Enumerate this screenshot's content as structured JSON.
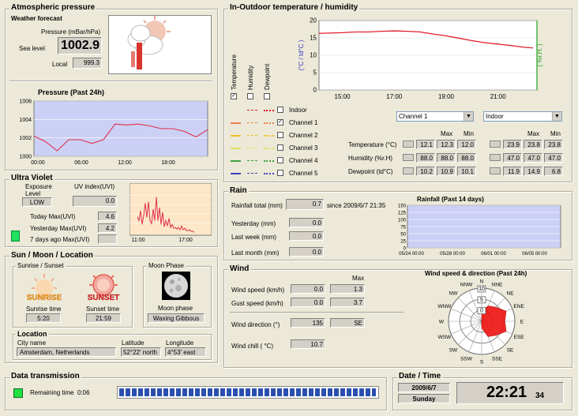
{
  "pressure": {
    "title": "Atmospheric pressure",
    "forecast_label": "Weather forecast",
    "units_label": "Pressure (mBar/hPa)",
    "sealevel_label": "Sea level",
    "sealevel_value": "1002.9",
    "local_label": "Local",
    "local_value": "999.3",
    "chart_title": "Pressure (Past 24h)"
  },
  "uv": {
    "title": "Ultra Violet",
    "exposure_label": "Exposure Level",
    "exposure_value": "LOW",
    "index_label": "UV index(UVI)",
    "index_value": "0.0",
    "today_label": "Today Max(UVI)",
    "today_value": "4.6",
    "yesterday_label": "Yesterday Max(UVI)",
    "yesterday_value": "4.2",
    "week_label": "7 days ago Max(UVI)",
    "week_value": ""
  },
  "sunmoon": {
    "title": "Sun / Moon / Location",
    "sun_group": "Sunrise / Sunset",
    "sunrise_img": "SUNRISE",
    "sunset_img": "SUNSET",
    "sunrise_label": "Sunrise time",
    "sunset_label": "Sunset time",
    "sunrise_value": "5:20",
    "sunset_value": "21:59",
    "moon_group": "Moon Phase",
    "moon_label": "Moon phase",
    "moon_value": "Waxing Gibbous",
    "location_group": "Location",
    "city_label": "City name",
    "city_value": "Amsterdam, Netherlands",
    "lat_label": "Latitude",
    "lat_value": "52°22' north",
    "lon_label": "Longitude",
    "lon_value": "4°53' east"
  },
  "temp": {
    "title": "In-Outdoor temperature / humidity",
    "col_temperature": "Temperature",
    "col_humidity": "Humidity",
    "col_dewpoint": "Dewpoint",
    "channels": [
      "Indoor",
      "Channel 1",
      "Channel 2",
      "Channel 3",
      "Channel 4",
      "Channel 5"
    ],
    "select_a": "Channel 1",
    "select_b": "Indoor",
    "max_label": "Max",
    "min_label": "Min",
    "rows": [
      {
        "label": "Temperature (°C)",
        "a": [
          "12.1",
          "12.3",
          "12.0"
        ],
        "b": [
          "23.9",
          "23.8",
          "23.8"
        ]
      },
      {
        "label": "Humidity (%r.H)",
        "a": [
          "88.0",
          "88.0",
          "88.0"
        ],
        "b": [
          "47.0",
          "47.0",
          "47.0"
        ]
      },
      {
        "label": "Dewpoint (td°C)",
        "a": [
          "10.2",
          "10.9",
          "10.1"
        ],
        "b": [
          "11.9",
          "14.9",
          "6.8"
        ]
      }
    ]
  },
  "rain": {
    "title": "Rain",
    "total_label": "Rainfall total (mm)",
    "total_value": "0.7",
    "since_label": "since 2009/6/7 21:35",
    "yesterday_label": "Yesterday (mm)",
    "yesterday_value": "0.0",
    "week_label": "Last week (mm)",
    "week_value": "0.0",
    "month_label": "Last month (mm)",
    "month_value": "0.0",
    "chart_title": "Rainfall (Past 14 days)"
  },
  "wind": {
    "title": "Wind",
    "max_label": "Max",
    "speed_label": "Wind speed (km/h)",
    "speed_value": "0.0",
    "speed_max": "1.3",
    "gust_label": "Gust speed (km/h)",
    "gust_value": "0.0",
    "gust_max": "3.7",
    "dir_label": "Wind direction (°)",
    "dir_value": "135",
    "dir_text": "SE",
    "chill_label": "Wind chill ( °C)",
    "chill_value": "10.7",
    "rose_title": "Wind speed & direction (Past 24h)"
  },
  "transmission": {
    "title": "Data transmission",
    "remaining_label": "Remaining time",
    "remaining_value": "0:06"
  },
  "datetime": {
    "title": "Date / Time",
    "date": "2009/6/7",
    "weekday": "Sunday",
    "time": "22:21",
    "seconds": "34"
  },
  "chart_data": [
    {
      "type": "line",
      "name": "pressure",
      "title": "Pressure (Past 24h)",
      "x": [
        "00:00",
        "01:30",
        "03:00",
        "04:30",
        "06:00",
        "07:30",
        "09:00",
        "10:30",
        "12:00",
        "13:30",
        "15:00",
        "16:30",
        "18:00",
        "19:30",
        "21:00",
        "22:30"
      ],
      "values": [
        1002.2,
        1001.6,
        1000.6,
        1001.8,
        1001.8,
        1001.4,
        1001.8,
        1003.5,
        1003.4,
        1003.5,
        1003.3,
        1003.0,
        1003.0,
        1002.7,
        1002.1,
        1002.9
      ],
      "xticks": [
        "00:00",
        "06:00",
        "12:00",
        "18:00"
      ],
      "yticks": [
        "1000",
        "1002",
        "1004",
        "1006"
      ],
      "ylim": [
        1000,
        1006
      ],
      "color": "#e0304a"
    },
    {
      "type": "line",
      "name": "uv",
      "x": [
        10.9,
        11.1,
        11.3,
        11.5,
        11.7,
        11.9,
        12.1,
        12.3,
        12.5,
        12.7,
        12.9,
        13.1,
        13.3,
        13.5,
        13.7,
        13.9,
        14.1,
        14.3,
        14.5,
        14.7,
        14.9,
        15.1,
        15.3,
        15.5,
        15.7,
        15.9,
        16.1,
        16.3,
        16.5,
        16.7,
        16.9,
        17.1,
        17.3,
        17.5,
        17.7,
        17.9,
        18.1
      ],
      "values": [
        2.0,
        1.5,
        2.8,
        1.0,
        2.2,
        3.8,
        1.9,
        4.0,
        1.5,
        1.1,
        3.0,
        1.5,
        4.6,
        1.5,
        3.2,
        1.0,
        2.6,
        0.7,
        1.5,
        0.8,
        1.8,
        0.6,
        1.0,
        0.5,
        0.6,
        0.4,
        0.6,
        0.3,
        0.8,
        0.3,
        0.5,
        0.2,
        0.2,
        0.3,
        0.1,
        0.1,
        0.0
      ],
      "xticks": [
        "11:00",
        "17:00"
      ],
      "ylim": [
        0,
        6
      ],
      "color": "#e0304a"
    },
    {
      "type": "line",
      "name": "temperature",
      "x": [
        14.1,
        14.5,
        15.0,
        15.5,
        16.0,
        16.5,
        17.0,
        17.5,
        18.0,
        18.5,
        19.0,
        19.5,
        20.0,
        20.5,
        21.0,
        21.5,
        22.0,
        22.35
      ],
      "values": [
        16.3,
        16.4,
        16.5,
        16.7,
        16.7,
        16.9,
        17.0,
        16.9,
        16.7,
        16.1,
        15.6,
        14.9,
        14.2,
        13.6,
        13.2,
        12.8,
        12.3,
        12.1
      ],
      "xticks": [
        "15:00",
        "17:00",
        "19:00",
        "21:00"
      ],
      "yticks": [
        "0",
        "5",
        "10",
        "15",
        "20"
      ],
      "ylim": [
        0,
        20
      ],
      "ylabel": "(°C / td°C )",
      "y2label": "( %r.H. )",
      "color": "#e0202a"
    },
    {
      "type": "bar",
      "name": "rainfall",
      "title": "Rainfall (Past 14 days)",
      "categories": [
        "05/24 00:00",
        "05/28 00:00",
        "06/01 00:00",
        "06/05 00:00"
      ],
      "values": [
        0,
        0,
        0,
        0
      ],
      "yticks": [
        "0",
        "25",
        "50",
        "75",
        "100",
        "125",
        "150"
      ],
      "ylim": [
        0,
        150
      ]
    },
    {
      "type": "radar",
      "name": "wind_rose",
      "title": "Wind speed & direction (Past 24h)",
      "directions": [
        "N",
        "NNE",
        "NE",
        "ENE",
        "E",
        "ESE",
        "SE",
        "SSE",
        "S",
        "SSW",
        "SW",
        "WSW",
        "W",
        "WNW",
        "NW",
        "NNW"
      ],
      "values": [
        3,
        5,
        6,
        8,
        7,
        8,
        6,
        5,
        2,
        0,
        0,
        0,
        0,
        0,
        0,
        0
      ],
      "rings": [
        "10",
        "5",
        "0"
      ],
      "color": "#ee1111"
    }
  ]
}
